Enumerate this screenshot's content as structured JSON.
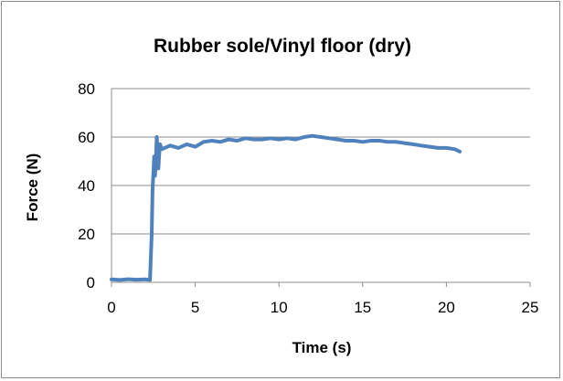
{
  "chart_data": {
    "type": "line",
    "title": "Rubber sole/Vinyl floor (dry)",
    "xlabel": "Time (s)",
    "ylabel": "Force (N)",
    "xlim": [
      0,
      25
    ],
    "ylim": [
      0,
      80
    ],
    "x_ticks": [
      0,
      5,
      10,
      15,
      20,
      25
    ],
    "y_ticks": [
      0,
      20,
      40,
      60,
      80
    ],
    "grid": "horizontal",
    "legend": "none",
    "series": [
      {
        "color": "#4f81bd",
        "points": [
          [
            0,
            1.2
          ],
          [
            0.5,
            1.0
          ],
          [
            1.0,
            1.3
          ],
          [
            1.5,
            1.1
          ],
          [
            2.0,
            1.2
          ],
          [
            2.3,
            1.0
          ],
          [
            2.4,
            20
          ],
          [
            2.45,
            38
          ],
          [
            2.5,
            45
          ],
          [
            2.55,
            52
          ],
          [
            2.6,
            44
          ],
          [
            2.65,
            50
          ],
          [
            2.7,
            60
          ],
          [
            2.75,
            55
          ],
          [
            2.8,
            47
          ],
          [
            2.85,
            53
          ],
          [
            2.9,
            57
          ],
          [
            3.0,
            55
          ],
          [
            3.5,
            56.5
          ],
          [
            4.0,
            55.5
          ],
          [
            4.5,
            57
          ],
          [
            5.0,
            56
          ],
          [
            5.5,
            58
          ],
          [
            6.0,
            58.5
          ],
          [
            6.5,
            58
          ],
          [
            7.0,
            59
          ],
          [
            7.5,
            58.5
          ],
          [
            8.0,
            59.5
          ],
          [
            8.5,
            59
          ],
          [
            9.0,
            59
          ],
          [
            9.5,
            59.5
          ],
          [
            10.0,
            59
          ],
          [
            10.5,
            59.5
          ],
          [
            11.0,
            59
          ],
          [
            11.5,
            60
          ],
          [
            12.0,
            60.5
          ],
          [
            12.5,
            60
          ],
          [
            13.0,
            59.5
          ],
          [
            13.5,
            59
          ],
          [
            14.0,
            58.5
          ],
          [
            14.5,
            58.5
          ],
          [
            15.0,
            58
          ],
          [
            15.5,
            58.5
          ],
          [
            16.0,
            58.5
          ],
          [
            16.5,
            58
          ],
          [
            17.0,
            58
          ],
          [
            17.5,
            57.5
          ],
          [
            18.0,
            57
          ],
          [
            18.5,
            56.5
          ],
          [
            19.0,
            56
          ],
          [
            19.5,
            55.5
          ],
          [
            20.0,
            55.5
          ],
          [
            20.5,
            55
          ],
          [
            20.8,
            54
          ]
        ]
      }
    ]
  }
}
